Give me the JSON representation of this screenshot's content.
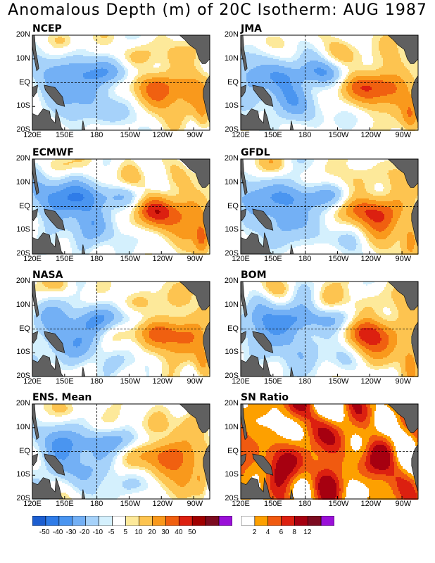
{
  "title": "Anomalous Depth (m) of 20C Isotherm: AUG 1987",
  "axes": {
    "lat_ticks": [
      "20N",
      "10N",
      "EQ",
      "10S",
      "20S"
    ],
    "lon_ticks": [
      "120E",
      "150E",
      "180",
      "150W",
      "120W",
      "90W"
    ]
  },
  "colors": {
    "land": "#606060",
    "anomaly_scale": [
      "#1c5ed0",
      "#2f7ce8",
      "#4a95f0",
      "#73b0f5",
      "#a6d2fa",
      "#d4f0fd",
      "#ffffff",
      "#fde99a",
      "#fdc450",
      "#f9991c",
      "#f06010",
      "#dc2010",
      "#a00000",
      "#7c0b20",
      "#9a10d8"
    ],
    "sn_scale": [
      "#ffffff",
      "#fda000",
      "#f05a10",
      "#dc2010",
      "#a60010",
      "#7c0b20",
      "#9a10d8"
    ]
  },
  "chart_data": [
    {
      "type": "heatmap",
      "title": "NCEP",
      "model": "anomaly",
      "seed": 1,
      "var": [
        0.9,
        1.0,
        0.9
      ]
    },
    {
      "type": "heatmap",
      "title": "JMA",
      "model": "anomaly",
      "seed": 2,
      "var": [
        1.0,
        1.1,
        0.8
      ]
    },
    {
      "type": "heatmap",
      "title": "ECMWF",
      "model": "anomaly",
      "seed": 3,
      "var": [
        1.1,
        1.3,
        1.2
      ]
    },
    {
      "type": "heatmap",
      "title": "GFDL",
      "model": "anomaly",
      "seed": 4,
      "var": [
        1.0,
        1.1,
        1.0
      ]
    },
    {
      "type": "heatmap",
      "title": "NASA",
      "model": "anomaly",
      "seed": 5,
      "var": [
        1.0,
        0.9,
        0.9
      ]
    },
    {
      "type": "heatmap",
      "title": "BOM",
      "model": "anomaly",
      "seed": 6,
      "var": [
        0.9,
        1.1,
        1.1
      ]
    },
    {
      "type": "heatmap",
      "title": "ENS. Mean",
      "model": "anomaly",
      "seed": 7,
      "var": [
        0.9,
        1.0,
        0.8
      ]
    },
    {
      "type": "heatmap",
      "title": "SN Ratio",
      "model": "snr",
      "seed": 8,
      "var": [
        1,
        1,
        1
      ]
    }
  ],
  "legend_anomaly": {
    "labels": [
      "-50",
      "-40",
      "-30",
      "-20",
      "-10",
      "-5",
      "5",
      "10",
      "20",
      "30",
      "40",
      "50"
    ]
  },
  "legend_sn": {
    "labels": [
      "2",
      "4",
      "6",
      "8",
      "12"
    ]
  }
}
